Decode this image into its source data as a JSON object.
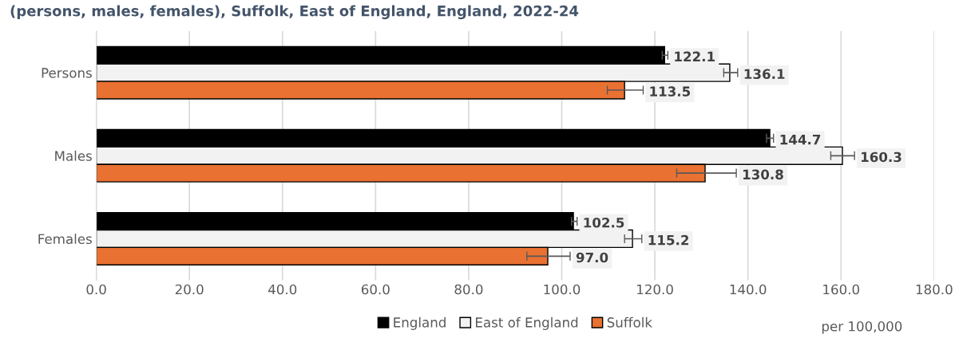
{
  "chart_data": {
    "type": "bar",
    "orientation": "horizontal",
    "title": "(persons, males, females), Suffolk, East of England, England, 2022-24",
    "categories": [
      "Persons",
      "Males",
      "Females"
    ],
    "series": [
      {
        "name": "England",
        "color": "#000000",
        "values": [
          122.1,
          144.7,
          102.5
        ],
        "value_labels": [
          "122.1",
          "144.7",
          "102.5"
        ],
        "errors": [
          [
            121.6,
            122.8
          ],
          [
            144.0,
            145.5
          ],
          [
            102.1,
            103.3
          ]
        ]
      },
      {
        "name": "East of England",
        "color": "#f2f2f2",
        "values": [
          136.1,
          160.3,
          115.2
        ],
        "value_labels": [
          "136.1",
          "160.3",
          "115.2"
        ],
        "errors": [
          [
            134.8,
            137.8
          ],
          [
            157.8,
            162.9
          ],
          [
            113.5,
            117.2
          ]
        ]
      },
      {
        "name": "Suffolk",
        "color": "#e97132",
        "values": [
          113.5,
          130.8,
          97.0
        ],
        "value_labels": [
          "113.5",
          "130.8",
          "97.0"
        ],
        "errors": [
          [
            109.8,
            117.5
          ],
          [
            124.7,
            137.5
          ],
          [
            92.5,
            101.8
          ]
        ]
      }
    ],
    "xlim": [
      0,
      180
    ],
    "xticks": [
      {
        "value": 0,
        "label": "0.0"
      },
      {
        "value": 20,
        "label": "20.0"
      },
      {
        "value": 40,
        "label": "40.0"
      },
      {
        "value": 60,
        "label": "60.0"
      },
      {
        "value": 80,
        "label": "80.0"
      },
      {
        "value": 100,
        "label": "100.0"
      },
      {
        "value": 120,
        "label": "120.0"
      },
      {
        "value": 140,
        "label": "140.0"
      },
      {
        "value": 160,
        "label": "160.0"
      },
      {
        "value": 180,
        "label": "180.0"
      }
    ],
    "xlabel": "per 100,000",
    "grid": "x",
    "legend": "bottom"
  }
}
